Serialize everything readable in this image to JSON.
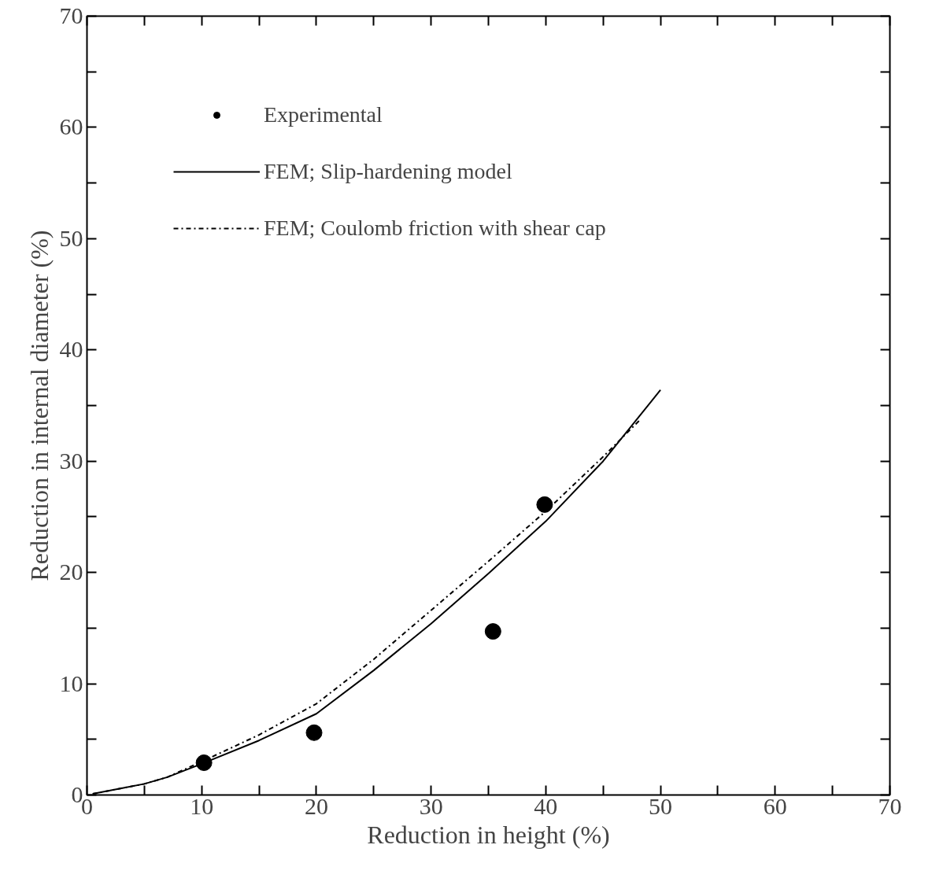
{
  "chart_data": {
    "type": "line",
    "xlabel": "Reduction in height (%)",
    "ylabel": "Reduction in internal diameter (%)",
    "xlim": [
      0,
      70
    ],
    "ylim": [
      0,
      70
    ],
    "xticks": [
      0,
      {
        "value": 5,
        "label": null
      },
      10,
      {
        "value": 15,
        "label": null
      },
      20,
      {
        "value": 25,
        "label": null
      },
      30,
      {
        "value": 35,
        "label": null
      },
      40,
      {
        "value": 45,
        "label": null
      },
      50,
      {
        "value": 55,
        "label": null
      },
      60,
      {
        "value": 65,
        "label": null
      },
      70
    ],
    "yticks": [
      0,
      {
        "value": 5,
        "label": null
      },
      10,
      {
        "value": 15,
        "label": null
      },
      20,
      {
        "value": 25,
        "label": null
      },
      30,
      {
        "value": 35,
        "label": null
      },
      40,
      {
        "value": 45,
        "label": null
      },
      50,
      {
        "value": 55,
        "label": null
      },
      60,
      {
        "value": 65,
        "label": null
      },
      70
    ],
    "grid": false,
    "legend": "top left",
    "series": [
      {
        "name": "Experimental",
        "type": "scatter",
        "marker": "circle",
        "color": "#000000",
        "x": [
          10.2,
          19.8,
          35.4,
          39.9
        ],
        "values": [
          2.9,
          5.6,
          14.7,
          26.1
        ]
      },
      {
        "name": "FEM; Slip-hardening model",
        "line_style": "solid",
        "color": "#000000",
        "x": [
          0.5,
          3,
          5,
          7,
          10,
          15,
          20,
          25,
          30,
          35,
          40,
          45,
          50
        ],
        "values": [
          0.1,
          0.6,
          1.0,
          1.6,
          2.8,
          4.9,
          7.3,
          11.2,
          15.4,
          19.9,
          24.6,
          30.0,
          36.4
        ]
      },
      {
        "name": "FEM; Coulomb friction with shear cap",
        "line_style": "dashdot",
        "color": "#000000",
        "x": [
          0.5,
          3,
          5,
          7,
          10,
          15,
          20,
          25,
          30,
          35,
          40,
          45,
          48.2
        ],
        "values": [
          0.1,
          0.6,
          1.0,
          1.6,
          3.0,
          5.4,
          8.2,
          12.2,
          16.6,
          21.0,
          25.5,
          30.4,
          33.7
        ]
      }
    ]
  }
}
